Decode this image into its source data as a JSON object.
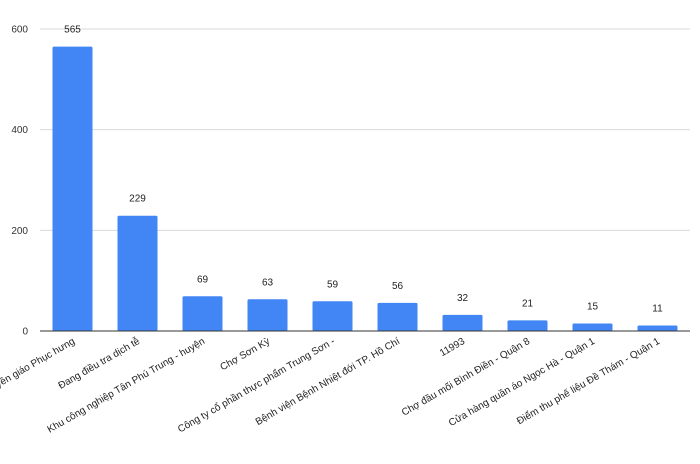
{
  "chart_data": {
    "type": "bar",
    "categories": [
      "Hội thánh Truyền giáo Phục hưng",
      "Đang điều tra dịch tễ",
      "Khu công nghiệp Tân Phú Trung - huyện",
      "Chợ Sơn Kỳ",
      "Công ty cổ phần thực phẩm Trung Sơn -",
      "Bệnh viện Bệnh Nhiệt đới TP. Hồ Chí",
      "11993",
      "Chợ đầu mối Bình Điền - Quận 8",
      "Cửa hàng quần áo Ngọc Hà - Quận 1",
      "Điểm thu phế liệu Đề Thám - Quận 1"
    ],
    "values": [
      565,
      229,
      69,
      63,
      59,
      56,
      32,
      21,
      15,
      11
    ],
    "value_labels": [
      "565",
      "229",
      "69",
      "63",
      "59",
      "56",
      "32",
      "21",
      "15",
      "11"
    ],
    "yticks": [
      0,
      200,
      400,
      600
    ],
    "ytick_labels": [
      "0",
      "200",
      "400",
      "600"
    ],
    "ylim": [
      0,
      600
    ],
    "grid": true,
    "bar_color": "#4285f4",
    "grid_color": "#d9d9d9",
    "axis_color": "#333333"
  }
}
